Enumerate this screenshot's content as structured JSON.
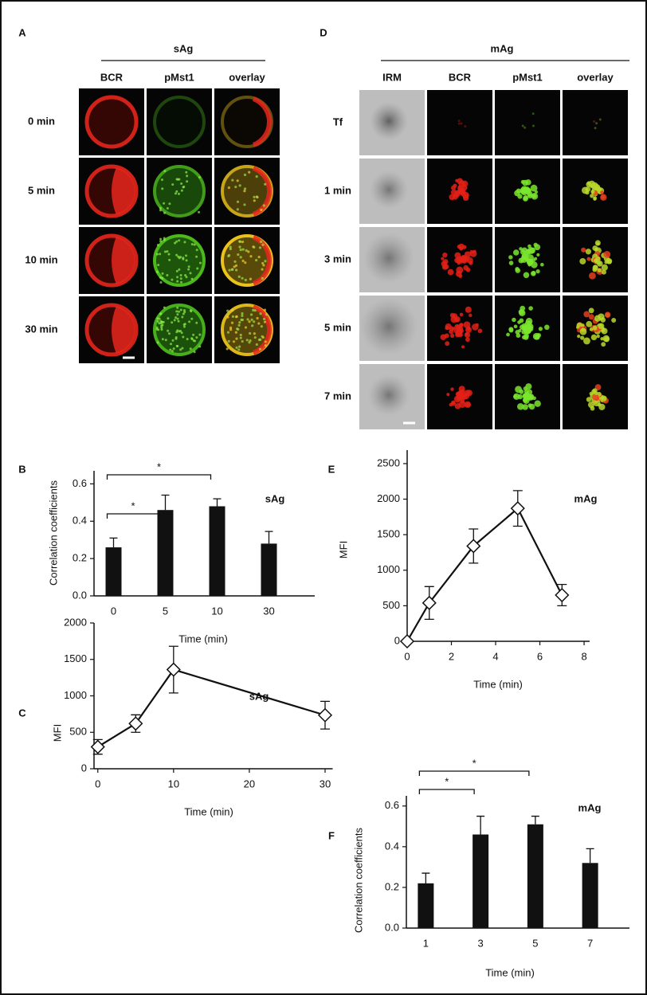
{
  "panels": [
    {
      "letter": "A",
      "title": "sAg",
      "columns": [
        {
          "label": "BCR",
          "color": "#a3182a"
        },
        {
          "label": "pMst1",
          "color": "#2f4fa8"
        },
        {
          "label": "overlay",
          "color": "#111111"
        }
      ],
      "rows": [
        "0 min",
        "5 min",
        "10 min",
        "30 min"
      ]
    },
    {
      "letter": "D",
      "title": "mAg",
      "columns": [
        {
          "label": "IRM",
          "color": "#2f4fa8"
        },
        {
          "label": "BCR",
          "color": "#a3182a"
        },
        {
          "label": "pMst1",
          "color": "#6fcf2a"
        },
        {
          "label": "overlay",
          "color": "#111111"
        }
      ],
      "rows": [
        "Tf",
        "1 min",
        "3 min",
        "5 min",
        "7 min"
      ]
    }
  ],
  "chart_data": [
    {
      "type": "bar",
      "panel_label": "B",
      "annotation": "sAg",
      "ylabel": "Correlation coefficients",
      "xlabel": "Time (min)",
      "categories": [
        "0",
        "5",
        "10",
        "30"
      ],
      "values": [
        0.26,
        0.46,
        0.48,
        0.28
      ],
      "errors": [
        0.05,
        0.08,
        0.04,
        0.065
      ],
      "color": "#111111",
      "ylim": [
        0,
        0.67
      ],
      "yticks": [
        {
          "value": 0,
          "label": "0.0"
        },
        0.2,
        0.4,
        0.6
      ],
      "significance": [
        {
          "text": "*",
          "from": 0,
          "to": 1
        },
        {
          "text": "*",
          "from": 0,
          "to": 2
        }
      ]
    },
    {
      "type": "line",
      "panel_label": "C",
      "annotation": "sAg",
      "ylabel": "MFI",
      "xlabel": "Time (min)",
      "x": [
        0,
        5,
        10,
        30
      ],
      "values": [
        300,
        620,
        1360,
        735
      ],
      "errors": [
        100,
        120,
        320,
        190
      ],
      "color": "#111111",
      "xlim": [
        -0.5,
        31
      ],
      "xticks": [
        0,
        10,
        20,
        30
      ],
      "ylim": [
        0,
        2000
      ],
      "yticks": [
        0,
        500,
        1000,
        1500,
        2000
      ]
    },
    {
      "type": "line",
      "panel_label": "E",
      "annotation": "mAg",
      "ylabel": "MFI",
      "xlabel": "Time (min)",
      "x": [
        0,
        1,
        3,
        5,
        7
      ],
      "values": [
        0,
        540,
        1340,
        1870,
        650
      ],
      "errors": [
        0,
        230,
        240,
        250,
        150
      ],
      "color": "#111111",
      "xlim": [
        0,
        8.25
      ],
      "xticks": [
        0,
        2,
        4,
        6,
        8
      ],
      "ylim": [
        0,
        2690
      ],
      "yticks": [
        0,
        500,
        1000,
        1500,
        2000,
        2500
      ]
    },
    {
      "type": "bar",
      "panel_label": "F",
      "annotation": "mAg",
      "ylabel": "Correlation coefficients",
      "xlabel": "Time (min)",
      "categories": [
        "1",
        "3",
        "5",
        "7"
      ],
      "values": [
        0.22,
        0.46,
        0.51,
        0.32
      ],
      "errors": [
        0.05,
        0.09,
        0.04,
        0.07
      ],
      "color": "#111111",
      "ylim": [
        0,
        0.65
      ],
      "yticks": [
        {
          "value": 0,
          "label": "0.0"
        },
        0.2,
        0.4,
        0.6
      ],
      "significance": [
        {
          "text": "*",
          "from": 0,
          "to": 1
        },
        {
          "text": "*",
          "from": 0,
          "to": 2
        }
      ]
    }
  ]
}
